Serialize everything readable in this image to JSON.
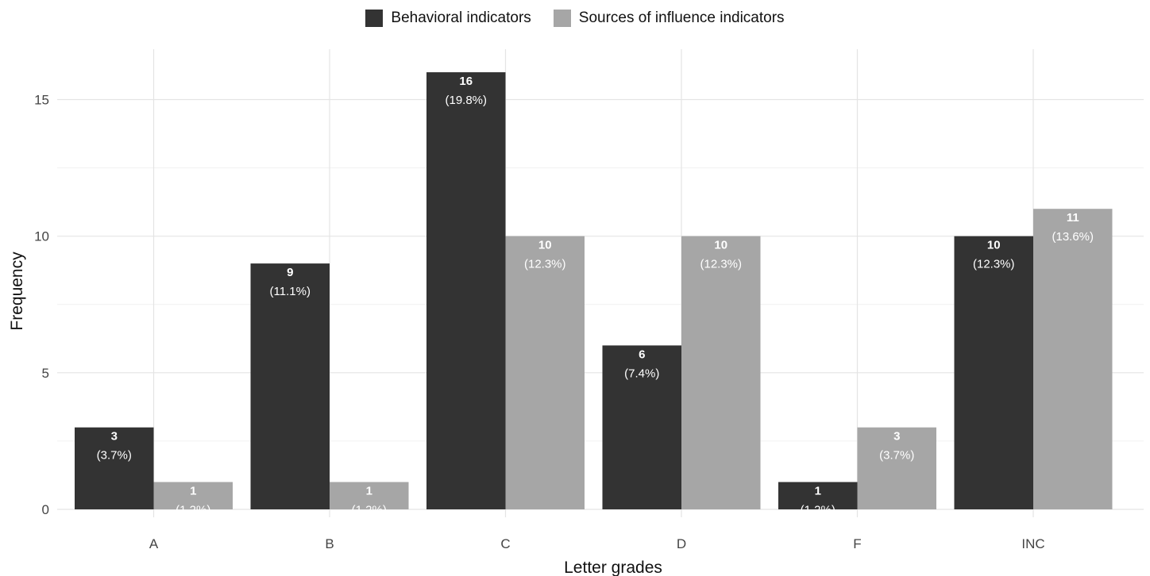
{
  "chart_data": {
    "type": "bar",
    "title": "",
    "xlabel": "Letter grades",
    "ylabel": "Frequency",
    "categories": [
      "A",
      "B",
      "C",
      "D",
      "F",
      "INC"
    ],
    "ylim": [
      0,
      16.5
    ],
    "yticks": [
      0,
      5,
      10,
      15
    ],
    "grid": true,
    "legend_position": "top",
    "series": [
      {
        "name": "Behavioral indicators",
        "color": "#333333",
        "values": [
          3,
          9,
          16,
          6,
          1,
          10
        ],
        "labels": [
          "(3.7%)",
          "(11.1%)",
          "(19.8%)",
          "(7.4%)",
          "(1.2%)",
          "(12.3%)"
        ]
      },
      {
        "name": "Sources of influence indicators",
        "color": "#a6a6a6",
        "values": [
          1,
          1,
          10,
          10,
          3,
          11
        ],
        "labels": [
          "(1.2%)",
          "(1.2%)",
          "(12.3%)",
          "(12.3%)",
          "(3.7%)",
          "(13.6%)"
        ]
      }
    ]
  }
}
